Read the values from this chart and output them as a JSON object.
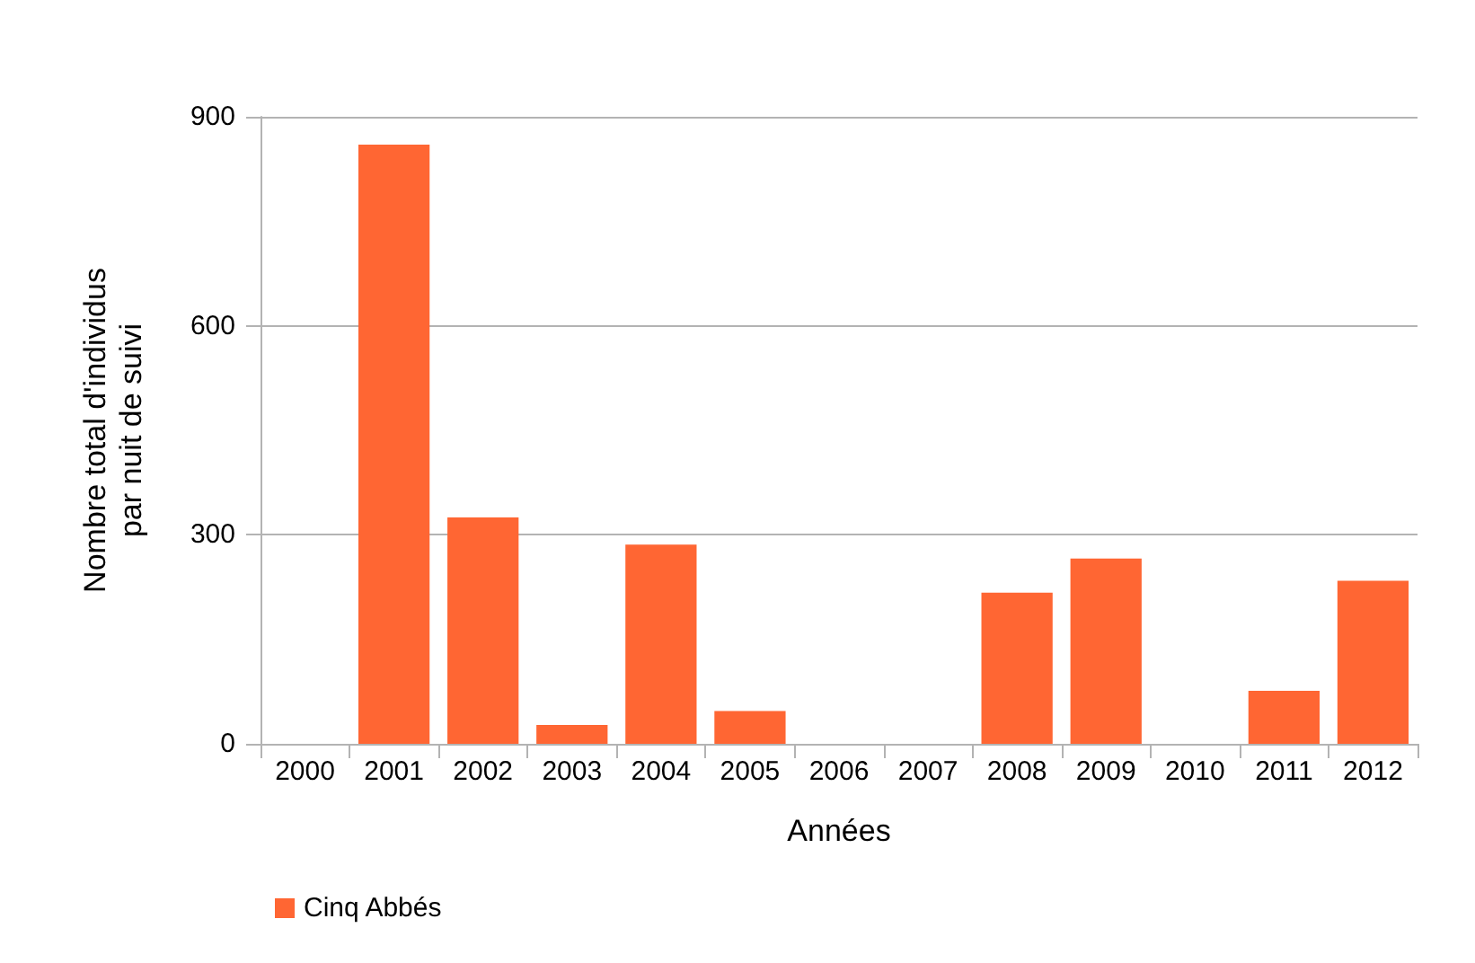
{
  "chart_data": {
    "type": "bar",
    "xlabel": "Années",
    "ylabel": "Nombre total d'individus\npar nuit de suivi",
    "categories": [
      "2000",
      "2001",
      "2002",
      "2003",
      "2004",
      "2005",
      "2006",
      "2007",
      "2008",
      "2009",
      "2010",
      "2011",
      "2012"
    ],
    "series": [
      {
        "name": "Cinq Abbés",
        "color": "#ff6633",
        "values": [
          0,
          860,
          325,
          27,
          286,
          47,
          0,
          0,
          217,
          266,
          0,
          76,
          234
        ]
      }
    ],
    "ylim": [
      0,
      900
    ],
    "yticks": [
      0,
      300,
      600,
      900
    ],
    "grid": "y",
    "legend": "bottom left"
  }
}
